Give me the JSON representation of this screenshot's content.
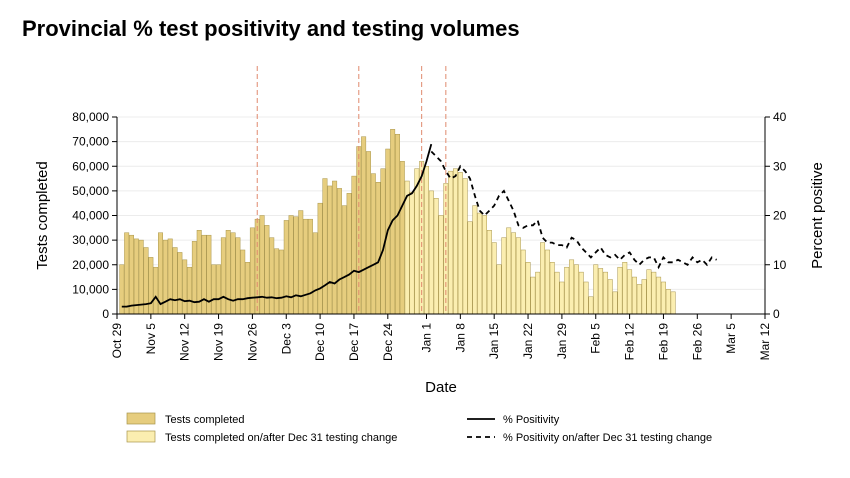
{
  "title": "Provincial % test positivity and testing volumes",
  "chart_data": {
    "type": "bar+line",
    "xlabel": "Date",
    "ylabel_left": "Tests completed",
    "ylabel_right": "Percent positive",
    "y_left_lim": [
      0,
      80000
    ],
    "y_right_lim": [
      0,
      40
    ],
    "y_left_ticks": [
      "0",
      "10,000",
      "20,000",
      "30,000",
      "40,000",
      "50,000",
      "60,000",
      "70,000",
      "80,000"
    ],
    "y_right_ticks": [
      "0",
      "10",
      "20",
      "30",
      "40"
    ],
    "x_ticks": [
      "Oct 29",
      "Nov 5",
      "Nov 12",
      "Nov 19",
      "Nov 26",
      "Dec 3",
      "Dec 10",
      "Dec 17",
      "Dec 24",
      "Jan 1",
      "Jan 8",
      "Jan 15",
      "Jan 22",
      "Jan 29",
      "Feb 5",
      "Feb 12",
      "Feb 19",
      "Feb 26",
      "Mar 5",
      "Mar 12"
    ],
    "x_start": "Oct 29",
    "grid": "horizontal",
    "reference_lines": [
      "Nov 27",
      "Dec 18",
      "Dec 31",
      "Jan 5"
    ],
    "colors": {
      "bars_before": "#e6cd7e",
      "bars_after": "#fbeeb0",
      "bar_edge": "#a8954c",
      "line": "#000000",
      "reference_line": "#e08a6e"
    },
    "tests_completed": [
      20000,
      33000,
      32000,
      30500,
      30000,
      27000,
      23000,
      19000,
      33000,
      30000,
      30500,
      27000,
      25000,
      22000,
      19000,
      29500,
      34000,
      32000,
      32000,
      20000,
      20000,
      31000,
      34000,
      33000,
      31000,
      26000,
      21000,
      35000,
      38500,
      40000,
      36000,
      31000,
      26500,
      26000,
      38000,
      40000,
      39500,
      42000,
      38500,
      38500,
      33000,
      45000,
      55000,
      52000,
      54000,
      51000,
      44000,
      49000,
      56000,
      68000,
      72000,
      66000,
      57000,
      53500,
      59000,
      67000,
      75000,
      73000,
      62000
    ],
    "tests_completed_after": [
      54000,
      49500,
      59000,
      62000,
      60000,
      50000,
      47000,
      40000,
      53000,
      58000,
      59000,
      57500,
      55000,
      37500,
      44000,
      41000,
      40000,
      34000,
      29000,
      20000,
      31000,
      35000,
      33000,
      31000,
      26000,
      21000,
      15000,
      17000,
      29000,
      26000,
      21000,
      17000,
      13000,
      19000,
      22000,
      20000,
      17000,
      13000,
      7000,
      20000,
      18500,
      17000,
      14000,
      9000,
      19000,
      21000,
      18000,
      15000,
      12000,
      14000,
      18000,
      17000,
      15000,
      13000,
      10000,
      9000
    ],
    "positivity": [
      1.5,
      1.5,
      1.7,
      1.8,
      1.9,
      2.0,
      2.2,
      3.5,
      2.0,
      2.5,
      3.0,
      2.8,
      3.0,
      2.6,
      2.7,
      2.4,
      2.5,
      3.0,
      2.5,
      3.0,
      3.0,
      3.5,
      3.0,
      2.7,
      3.0,
      3.0,
      3.2,
      3.3,
      3.4,
      3.5,
      3.3,
      3.4,
      3.2,
      3.3,
      3.6,
      3.4,
      3.8,
      3.6,
      3.9,
      4.2,
      4.8,
      5.2,
      5.8,
      6.5,
      6.2,
      7.0,
      7.5,
      8.0,
      8.8,
      8.5,
      9.0,
      9.5,
      10.0,
      10.5,
      13.0,
      17.0,
      19.0,
      20.0,
      22.0,
      24.0,
      24.5,
      26.0,
      28.0,
      31.0,
      34.5
    ],
    "positivity_after": [
      33,
      32,
      31,
      29,
      27.5,
      28,
      30,
      29,
      27.5,
      24,
      21,
      20,
      21,
      22,
      24,
      25,
      23,
      21,
      18,
      17.5,
      18,
      18,
      19,
      15.5,
      14.5,
      14.5,
      14,
      14,
      13.5,
      15.5,
      15,
      13.5,
      12.5,
      11.5,
      12.5,
      13.5,
      12,
      11.5,
      12,
      11,
      12,
      12.5,
      11,
      10,
      11,
      11.5,
      11.5,
      9.5,
      11.5,
      10.5,
      10.5,
      11,
      10.5,
      10,
      11.5,
      10.5,
      11,
      10,
      11.5,
      11
    ]
  },
  "legend": [
    {
      "label": "Tests completed",
      "kind": "bar-dark"
    },
    {
      "label": "Tests completed on/after Dec 31 testing change",
      "kind": "bar-light"
    },
    {
      "label": "% Positivity",
      "kind": "line-solid"
    },
    {
      "label": "% Positivity on/after Dec 31 testing change",
      "kind": "line-dashed"
    }
  ]
}
